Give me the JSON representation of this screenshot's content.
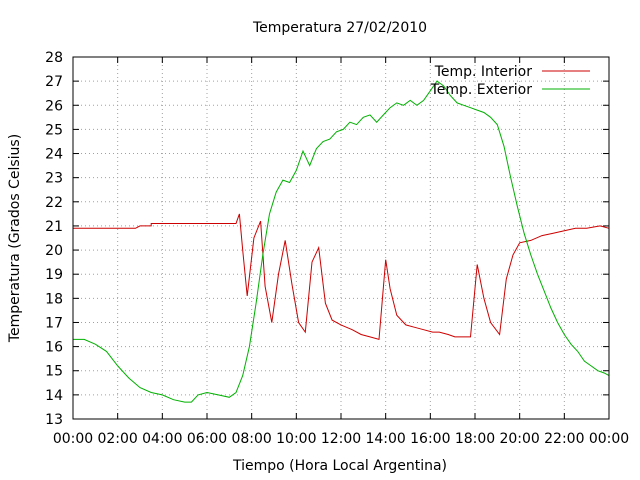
{
  "chart_data": {
    "type": "line",
    "title": "Temperatura 27/02/2010",
    "xlabel": "Tiempo (Hora Local Argentina)",
    "ylabel": "Temperatura (Grados Celsius)",
    "xlim": [
      0,
      24
    ],
    "ylim": [
      13,
      28
    ],
    "x_ticks": [
      "00:00",
      "02:00",
      "04:00",
      "06:00",
      "08:00",
      "10:00",
      "12:00",
      "14:00",
      "16:00",
      "18:00",
      "20:00",
      "22:00",
      "00:00"
    ],
    "y_ticks": [
      "13",
      "14",
      "15",
      "16",
      "17",
      "18",
      "19",
      "20",
      "21",
      "22",
      "23",
      "24",
      "25",
      "26",
      "27",
      "28"
    ],
    "grid": true,
    "legend_position": "top-right",
    "series": [
      {
        "name": "Temp. Interior",
        "color": "#cc0000",
        "x": [
          0,
          2.8,
          3.0,
          3.5,
          3.5,
          7.3,
          7.45,
          7.6,
          7.8,
          8.1,
          8.4,
          8.6,
          8.9,
          9.2,
          9.5,
          9.8,
          10.1,
          10.4,
          10.7,
          11.0,
          11.3,
          11.6,
          12.0,
          12.5,
          12.9,
          13.3,
          13.7,
          14.0,
          14.2,
          14.5,
          14.9,
          15.3,
          15.7,
          16.1,
          16.4,
          16.8,
          17.1,
          17.4,
          17.8,
          18.1,
          18.4,
          18.7,
          19.1,
          19.4,
          19.7,
          20.0,
          20.5,
          21.0,
          21.5,
          22.0,
          22.5,
          23.0,
          23.6,
          24.0
        ],
        "y": [
          20.9,
          20.9,
          21.0,
          21.0,
          21.1,
          21.1,
          21.5,
          20.0,
          18.1,
          20.5,
          21.2,
          18.5,
          17.0,
          19.0,
          20.4,
          18.6,
          17.0,
          16.6,
          19.5,
          20.1,
          17.8,
          17.1,
          16.9,
          16.7,
          16.5,
          16.4,
          16.3,
          19.6,
          18.4,
          17.3,
          16.9,
          16.8,
          16.7,
          16.6,
          16.6,
          16.5,
          16.4,
          16.4,
          16.4,
          19.4,
          18.0,
          17.0,
          16.5,
          18.8,
          19.8,
          20.3,
          20.4,
          20.6,
          20.7,
          20.8,
          20.9,
          20.9,
          21.0,
          20.9
        ]
      },
      {
        "name": "Temp. Exterior",
        "color": "#00b000",
        "x": [
          0,
          0.5,
          1.0,
          1.5,
          2.0,
          2.5,
          3.0,
          3.5,
          4.0,
          4.5,
          5.0,
          5.3,
          5.6,
          6.0,
          6.5,
          7.0,
          7.3,
          7.6,
          7.9,
          8.2,
          8.5,
          8.8,
          9.1,
          9.4,
          9.7,
          10.0,
          10.3,
          10.6,
          10.9,
          11.2,
          11.5,
          11.8,
          12.1,
          12.4,
          12.7,
          13.0,
          13.3,
          13.6,
          13.9,
          14.2,
          14.5,
          14.8,
          15.1,
          15.4,
          15.7,
          16.0,
          16.3,
          16.6,
          16.9,
          17.2,
          17.5,
          17.8,
          18.1,
          18.4,
          18.7,
          19.0,
          19.3,
          19.6,
          19.9,
          20.2,
          20.5,
          20.8,
          21.1,
          21.4,
          21.7,
          22.0,
          22.3,
          22.6,
          22.9,
          23.2,
          23.5,
          23.8,
          24.0
        ],
        "y": [
          16.3,
          16.3,
          16.1,
          15.8,
          15.2,
          14.7,
          14.3,
          14.1,
          14.0,
          13.8,
          13.7,
          13.7,
          14.0,
          14.1,
          14.0,
          13.9,
          14.1,
          14.8,
          16.0,
          17.8,
          19.8,
          21.5,
          22.4,
          22.9,
          22.8,
          23.3,
          24.1,
          23.5,
          24.2,
          24.5,
          24.6,
          24.9,
          25.0,
          25.3,
          25.2,
          25.5,
          25.6,
          25.3,
          25.6,
          25.9,
          26.1,
          26.0,
          26.2,
          26.0,
          26.2,
          26.6,
          27.0,
          26.8,
          26.4,
          26.1,
          26.0,
          25.9,
          25.8,
          25.7,
          25.5,
          25.2,
          24.3,
          23.0,
          21.8,
          20.7,
          19.8,
          19.0,
          18.3,
          17.6,
          17.0,
          16.5,
          16.1,
          15.8,
          15.4,
          15.2,
          15.0,
          14.9,
          14.8
        ]
      }
    ]
  }
}
